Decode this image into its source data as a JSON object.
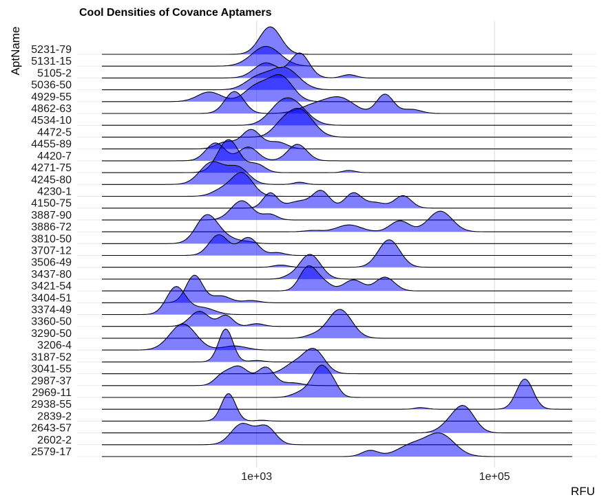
{
  "chart_data": {
    "type": "ridgeline",
    "title": "Cool Densities of Covance Aptamers",
    "xlabel": "RFU",
    "ylabel": "AptName",
    "x_scale": "log10",
    "xlim": [
      50,
      450000
    ],
    "x_ticks": [
      {
        "value": 1000,
        "label": "1e+03"
      },
      {
        "value": 100000,
        "label": "1e+05"
      }
    ],
    "grid": true,
    "fill_color": "#0000ff",
    "fill_opacity": 0.5,
    "line_color": "#000000",
    "series": [
      {
        "name": "5231-79",
        "peaks": [
          [
            1300,
            0.09,
            1.0
          ]
        ]
      },
      {
        "name": "5131-15",
        "peaks": [
          [
            1200,
            0.12,
            0.72
          ]
        ]
      },
      {
        "name": "5105-2",
        "peaks": [
          [
            2300,
            0.08,
            0.9
          ],
          [
            1200,
            0.1,
            0.55
          ],
          [
            6000,
            0.06,
            0.12
          ]
        ]
      },
      {
        "name": "5036-50",
        "peaks": [
          [
            1700,
            0.12,
            0.8
          ],
          [
            1000,
            0.1,
            0.4
          ]
        ]
      },
      {
        "name": "4929-55",
        "peaks": [
          [
            400,
            0.1,
            0.35
          ],
          [
            1000,
            0.1,
            0.55
          ],
          [
            1600,
            0.1,
            0.9
          ]
        ]
      },
      {
        "name": "4862-63",
        "peaks": [
          [
            650,
            0.08,
            0.8
          ],
          [
            5000,
            0.12,
            0.55
          ],
          [
            12000,
            0.07,
            0.7
          ],
          [
            3000,
            0.12,
            0.28
          ],
          [
            20000,
            0.08,
            0.15
          ]
        ]
      },
      {
        "name": "4534-10",
        "peaks": [
          [
            2000,
            0.12,
            0.8
          ],
          [
            1500,
            0.1,
            0.35
          ]
        ]
      },
      {
        "name": "4472-5",
        "peaks": [
          [
            2300,
            0.11,
            1.0
          ],
          [
            1600,
            0.08,
            0.3
          ]
        ]
      },
      {
        "name": "4455-89",
        "peaks": [
          [
            900,
            0.08,
            0.7
          ],
          [
            550,
            0.08,
            0.25
          ],
          [
            1500,
            0.08,
            0.25
          ]
        ]
      },
      {
        "name": "4420-7",
        "peaks": [
          [
            450,
            0.08,
            0.65
          ],
          [
            850,
            0.08,
            0.5
          ],
          [
            2200,
            0.08,
            0.6
          ]
        ]
      },
      {
        "name": "4271-75",
        "peaks": [
          [
            580,
            0.09,
            1.2
          ],
          [
            1000,
            0.07,
            0.3
          ],
          [
            6000,
            0.05,
            0.08
          ]
        ]
      },
      {
        "name": "4245-80",
        "peaks": [
          [
            420,
            0.1,
            0.8
          ],
          [
            700,
            0.09,
            0.6
          ],
          [
            2300,
            0.05,
            0.08
          ]
        ]
      },
      {
        "name": "4230-1",
        "peaks": [
          [
            750,
            0.09,
            0.85
          ],
          [
            500,
            0.08,
            0.2
          ]
        ]
      },
      {
        "name": "4150-75",
        "peaks": [
          [
            1300,
            0.06,
            0.55
          ],
          [
            3500,
            0.07,
            0.6
          ],
          [
            6500,
            0.07,
            0.55
          ],
          [
            17000,
            0.07,
            0.45
          ],
          [
            2300,
            0.1,
            0.25
          ],
          [
            10000,
            0.08,
            0.2
          ]
        ]
      },
      {
        "name": "3887-90",
        "peaks": [
          [
            750,
            0.09,
            0.7
          ],
          [
            1300,
            0.06,
            0.2
          ]
        ]
      },
      {
        "name": "3886-72",
        "peaks": [
          [
            35000,
            0.1,
            0.75
          ],
          [
            16000,
            0.08,
            0.4
          ],
          [
            6000,
            0.1,
            0.25
          ],
          [
            3000,
            0.07,
            0.05
          ]
        ]
      },
      {
        "name": "3810-50",
        "peaks": [
          [
            380,
            0.09,
            1.0
          ],
          [
            550,
            0.1,
            0.2
          ],
          [
            850,
            0.06,
            0.05
          ]
        ]
      },
      {
        "name": "3707-12",
        "peaks": [
          [
            480,
            0.08,
            0.75
          ],
          [
            850,
            0.08,
            0.65
          ],
          [
            1500,
            0.06,
            0.1
          ]
        ]
      },
      {
        "name": "3506-49",
        "peaks": [
          [
            13000,
            0.09,
            1.0
          ],
          [
            1600,
            0.06,
            0.08
          ]
        ]
      },
      {
        "name": "3437-80",
        "peaks": [
          [
            2800,
            0.09,
            0.9
          ],
          [
            1800,
            0.05,
            0.05
          ]
        ]
      },
      {
        "name": "3421-54",
        "peaks": [
          [
            2700,
            0.07,
            0.85
          ],
          [
            12000,
            0.08,
            0.5
          ],
          [
            6500,
            0.08,
            0.4
          ],
          [
            3600,
            0.07,
            0.3
          ]
        ]
      },
      {
        "name": "3404-51",
        "peaks": [
          [
            300,
            0.07,
            1.0
          ],
          [
            500,
            0.08,
            0.25
          ],
          [
            900,
            0.07,
            0.08
          ]
        ]
      },
      {
        "name": "3374-49",
        "peaks": [
          [
            210,
            0.08,
            1.0
          ],
          [
            350,
            0.1,
            0.25
          ]
        ]
      },
      {
        "name": "3360-50",
        "peaks": [
          [
            330,
            0.08,
            0.55
          ],
          [
            550,
            0.06,
            0.4
          ],
          [
            1000,
            0.06,
            0.1
          ]
        ]
      },
      {
        "name": "3290-50",
        "peaks": [
          [
            5000,
            0.1,
            1.05
          ],
          [
            3000,
            0.07,
            0.1
          ]
        ]
      },
      {
        "name": "3206-4",
        "peaks": [
          [
            240,
            0.11,
            0.95
          ],
          [
            650,
            0.1,
            0.15
          ]
        ]
      },
      {
        "name": "3187-52",
        "peaks": [
          [
            550,
            0.06,
            1.2
          ],
          [
            1000,
            0.06,
            0.05
          ]
        ]
      },
      {
        "name": "3041-55",
        "peaks": [
          [
            3000,
            0.09,
            0.9
          ],
          [
            2000,
            0.08,
            0.3
          ]
        ]
      },
      {
        "name": "2987-37",
        "peaks": [
          [
            700,
            0.09,
            0.7
          ],
          [
            1200,
            0.07,
            0.65
          ],
          [
            500,
            0.06,
            0.25
          ],
          [
            2000,
            0.08,
            0.1
          ]
        ]
      },
      {
        "name": "2969-11",
        "peaks": [
          [
            3500,
            0.08,
            1.15
          ],
          [
            2300,
            0.07,
            0.15
          ],
          [
            4500,
            0.05,
            0.2
          ]
        ]
      },
      {
        "name": "2938-55",
        "peaks": [
          [
            180000,
            0.07,
            1.1
          ],
          [
            24000,
            0.05,
            0.06
          ]
        ]
      },
      {
        "name": "2839-2",
        "peaks": [
          [
            580,
            0.06,
            1.0
          ],
          [
            1100,
            0.05,
            0.03
          ]
        ]
      },
      {
        "name": "2643-57",
        "peaks": [
          [
            55000,
            0.09,
            0.95
          ],
          [
            40000,
            0.08,
            0.2
          ]
        ]
      },
      {
        "name": "2602-2",
        "peaks": [
          [
            750,
            0.09,
            0.75
          ],
          [
            1200,
            0.08,
            0.65
          ]
        ]
      },
      {
        "name": "2579-17",
        "peaks": [
          [
            35000,
            0.12,
            0.8
          ],
          [
            20000,
            0.12,
            0.4
          ],
          [
            9000,
            0.07,
            0.22
          ]
        ]
      }
    ]
  }
}
